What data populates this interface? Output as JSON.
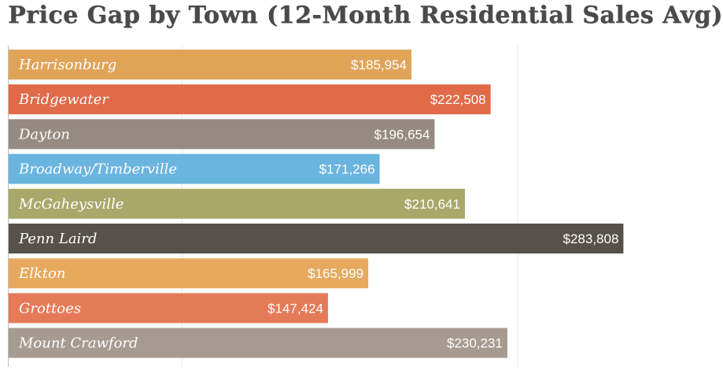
{
  "chart_data": {
    "type": "bar",
    "orientation": "horizontal",
    "title": "Price Gap by Town (12-Month Residential Sales Avg)",
    "xlabel": "",
    "ylabel": "",
    "xlim": [
      0,
      300000
    ],
    "grid": true,
    "categories": [
      "Harrisonburg",
      "Bridgewater",
      "Dayton",
      "Broadway/Timberville",
      "McGaheysville",
      "Penn Laird",
      "Elkton",
      "Grottoes",
      "Mount Crawford"
    ],
    "values": [
      185954,
      222508,
      196654,
      171266,
      210641,
      283808,
      165999,
      147424,
      230231
    ],
    "value_labels": [
      "$185,954",
      "$222,508",
      "$196,654",
      "$171,266",
      "$210,641",
      "$283,808",
      "$165,999",
      "$147,424",
      "$230,231"
    ],
    "colors": [
      "#e0a458",
      "#e16a48",
      "#958b82",
      "#6ab4e0",
      "#a8a86a",
      "#57514b",
      "#e6a95e",
      "#e57a58",
      "#a59b91"
    ]
  }
}
